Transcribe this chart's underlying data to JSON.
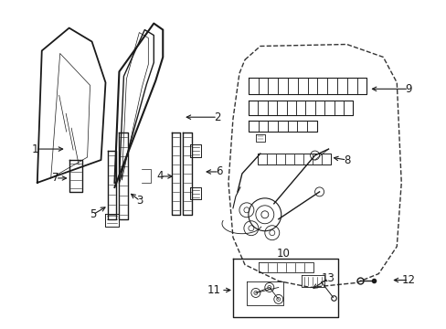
{
  "bg_color": "#ffffff",
  "fig_width": 4.89,
  "fig_height": 3.6,
  "dpi": 100,
  "line_color": "#1a1a1a",
  "dash_color": "#333333"
}
